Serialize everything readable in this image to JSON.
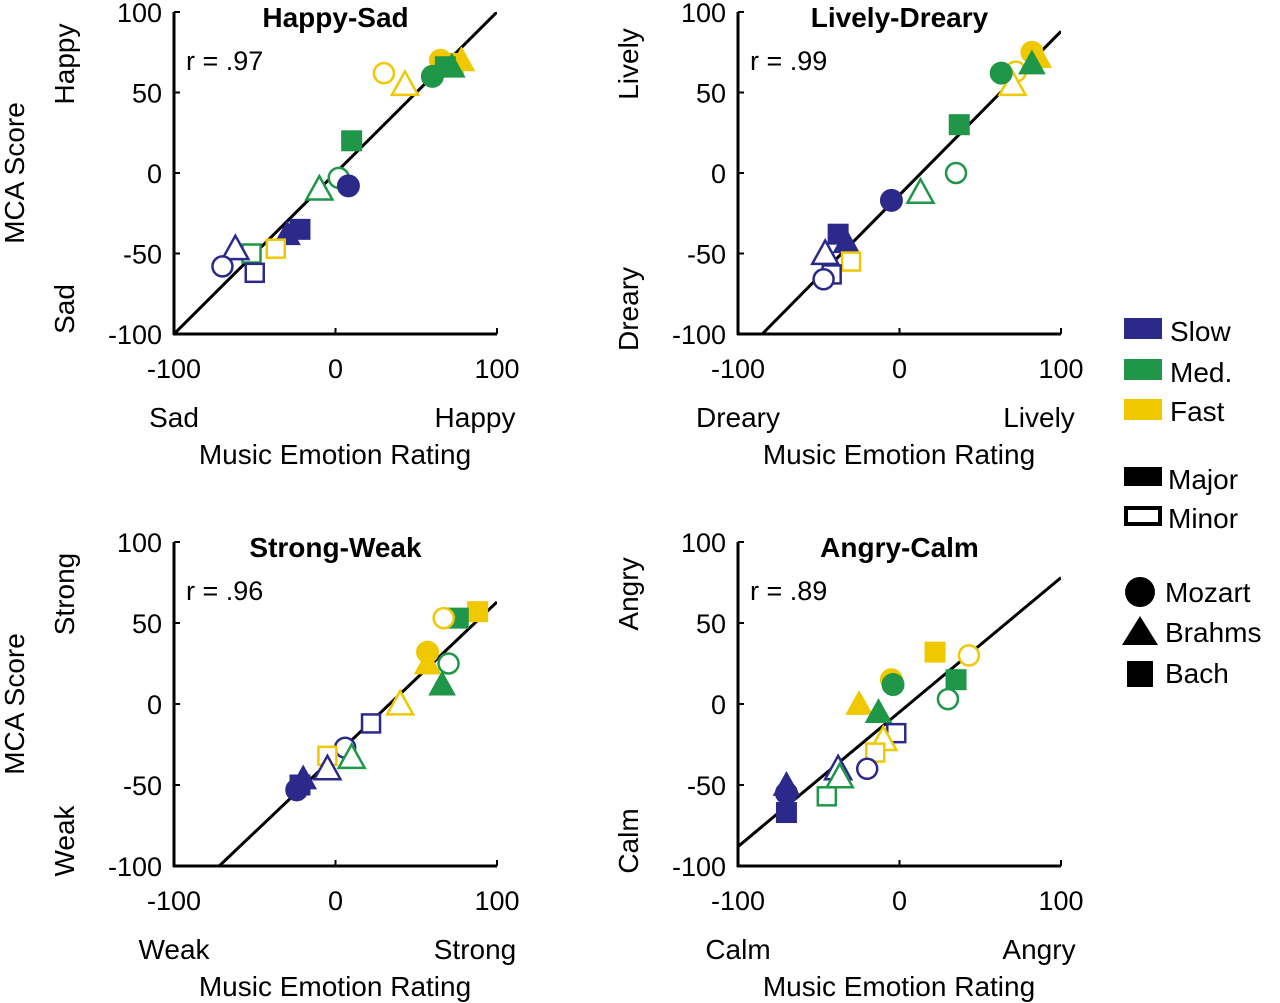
{
  "legend": {
    "speeds": [
      {
        "label": "Slow",
        "color": "#2b2a8a"
      },
      {
        "label": "Med.",
        "color": "#1f9648"
      },
      {
        "label": "Fast",
        "color": "#f0c800"
      }
    ],
    "modes": [
      {
        "label": "Major",
        "style": "filled"
      },
      {
        "label": "Minor",
        "style": "open"
      }
    ],
    "composers": [
      {
        "label": "Mozart",
        "shape": "circle"
      },
      {
        "label": "Brahms",
        "shape": "triangle"
      },
      {
        "label": "Bach",
        "shape": "square"
      }
    ]
  },
  "chart_data": [
    {
      "type": "scatter",
      "title": "Happy-Sad",
      "r_label": "r = .97",
      "xlabel": "Music Emotion Rating",
      "ylabel": "MCA Score",
      "x_low_label": "Sad",
      "x_high_label": "Happy",
      "y_low_label": "Sad",
      "y_high_label": "Happy",
      "xlim": [
        -100,
        100
      ],
      "ylim": [
        -100,
        100
      ],
      "xticks": [
        "-100",
        "0",
        "100"
      ],
      "yticks": [
        "100",
        "50",
        "0",
        "-50",
        "-100"
      ],
      "show_ylabel": true,
      "fit_line": [
        [
          -100,
          -100
        ],
        [
          100,
          100
        ]
      ],
      "points": [
        {
          "x": 65,
          "y": 70,
          "speed": "Fast",
          "mode": "Major",
          "composer": "Mozart"
        },
        {
          "x": 73,
          "y": 68,
          "speed": "Fast",
          "mode": "Major",
          "composer": "Bach"
        },
        {
          "x": 78,
          "y": 70,
          "speed": "Fast",
          "mode": "Major",
          "composer": "Brahms"
        },
        {
          "x": 60,
          "y": 60,
          "speed": "Med.",
          "mode": "Major",
          "composer": "Mozart"
        },
        {
          "x": 72,
          "y": 66,
          "speed": "Med.",
          "mode": "Major",
          "composer": "Brahms"
        },
        {
          "x": 68,
          "y": 66,
          "speed": "Med.",
          "mode": "Major",
          "composer": "Bach"
        },
        {
          "x": 30,
          "y": 62,
          "speed": "Fast",
          "mode": "Minor",
          "composer": "Mozart"
        },
        {
          "x": 43,
          "y": 55,
          "speed": "Fast",
          "mode": "Minor",
          "composer": "Brahms"
        },
        {
          "x": 10,
          "y": 20,
          "speed": "Med.",
          "mode": "Major",
          "composer": "Bach"
        },
        {
          "x": 2,
          "y": -3,
          "speed": "Med.",
          "mode": "Minor",
          "composer": "Mozart"
        },
        {
          "x": -10,
          "y": -10,
          "speed": "Med.",
          "mode": "Minor",
          "composer": "Brahms"
        },
        {
          "x": 8,
          "y": -8,
          "speed": "Slow",
          "mode": "Major",
          "composer": "Mozart"
        },
        {
          "x": -22,
          "y": -35,
          "speed": "Slow",
          "mode": "Major",
          "composer": "Bach"
        },
        {
          "x": -30,
          "y": -38,
          "speed": "Slow",
          "mode": "Major",
          "composer": "Brahms"
        },
        {
          "x": -37,
          "y": -47,
          "speed": "Fast",
          "mode": "Minor",
          "composer": "Bach"
        },
        {
          "x": -52,
          "y": -50,
          "speed": "Med.",
          "mode": "Minor",
          "composer": "Bach"
        },
        {
          "x": -62,
          "y": -47,
          "speed": "Slow",
          "mode": "Minor",
          "composer": "Brahms"
        },
        {
          "x": -70,
          "y": -58,
          "speed": "Slow",
          "mode": "Minor",
          "composer": "Mozart"
        },
        {
          "x": -50,
          "y": -62,
          "speed": "Slow",
          "mode": "Minor",
          "composer": "Bach"
        }
      ]
    },
    {
      "type": "scatter",
      "title": "Lively-Dreary",
      "r_label": "r = .99",
      "xlabel": "Music Emotion Rating",
      "ylabel": "",
      "x_low_label": "Dreary",
      "x_high_label": "Lively",
      "y_low_label": "Dreary",
      "y_high_label": "Lively",
      "xlim": [
        -100,
        100
      ],
      "ylim": [
        -100,
        100
      ],
      "xticks": [
        "-100",
        "0",
        "100"
      ],
      "yticks": [
        "100",
        "50",
        "0",
        "-50",
        "-100"
      ],
      "show_ylabel": false,
      "fit_line": [
        [
          -85,
          -100
        ],
        [
          100,
          88
        ]
      ],
      "points": [
        {
          "x": 82,
          "y": 75,
          "speed": "Fast",
          "mode": "Major",
          "composer": "Mozart"
        },
        {
          "x": 86,
          "y": 72,
          "speed": "Fast",
          "mode": "Major",
          "composer": "Brahms"
        },
        {
          "x": 72,
          "y": 63,
          "speed": "Fast",
          "mode": "Minor",
          "composer": "Mozart"
        },
        {
          "x": 70,
          "y": 55,
          "speed": "Fast",
          "mode": "Minor",
          "composer": "Brahms"
        },
        {
          "x": 63,
          "y": 62,
          "speed": "Med.",
          "mode": "Major",
          "composer": "Mozart"
        },
        {
          "x": 82,
          "y": 68,
          "speed": "Med.",
          "mode": "Major",
          "composer": "Brahms"
        },
        {
          "x": 37,
          "y": 30,
          "speed": "Med.",
          "mode": "Major",
          "composer": "Bach"
        },
        {
          "x": 35,
          "y": 0,
          "speed": "Med.",
          "mode": "Minor",
          "composer": "Mozart"
        },
        {
          "x": 13,
          "y": -12,
          "speed": "Med.",
          "mode": "Minor",
          "composer": "Brahms"
        },
        {
          "x": -5,
          "y": -17,
          "speed": "Slow",
          "mode": "Major",
          "composer": "Mozart"
        },
        {
          "x": -38,
          "y": -38,
          "speed": "Slow",
          "mode": "Major",
          "composer": "Bach"
        },
        {
          "x": -33,
          "y": -43,
          "speed": "Slow",
          "mode": "Major",
          "composer": "Brahms"
        },
        {
          "x": -30,
          "y": -55,
          "speed": "Fast",
          "mode": "Minor",
          "composer": "Bach"
        },
        {
          "x": -46,
          "y": -50,
          "speed": "Slow",
          "mode": "Minor",
          "composer": "Brahms"
        },
        {
          "x": -42,
          "y": -63,
          "speed": "Slow",
          "mode": "Minor",
          "composer": "Bach"
        },
        {
          "x": -47,
          "y": -66,
          "speed": "Slow",
          "mode": "Minor",
          "composer": "Mozart"
        }
      ]
    },
    {
      "type": "scatter",
      "title": "Strong-Weak",
      "r_label": "r = .96",
      "xlabel": "Music Emotion Rating",
      "ylabel": "MCA Score",
      "x_low_label": "Weak",
      "x_high_label": "Strong",
      "y_low_label": "Weak",
      "y_high_label": "Strong",
      "xlim": [
        -100,
        100
      ],
      "ylim": [
        -100,
        100
      ],
      "xticks": [
        "-100",
        "0",
        "100"
      ],
      "yticks": [
        "100",
        "50",
        "0",
        "-50",
        "-100"
      ],
      "show_ylabel": true,
      "fit_line": [
        [
          -72,
          -100
        ],
        [
          100,
          63
        ]
      ],
      "points": [
        {
          "x": 88,
          "y": 57,
          "speed": "Fast",
          "mode": "Major",
          "composer": "Bach"
        },
        {
          "x": 76,
          "y": 53,
          "speed": "Med.",
          "mode": "Major",
          "composer": "Bach"
        },
        {
          "x": 67,
          "y": 53,
          "speed": "Fast",
          "mode": "Minor",
          "composer": "Mozart"
        },
        {
          "x": 57,
          "y": 32,
          "speed": "Fast",
          "mode": "Major",
          "composer": "Mozart"
        },
        {
          "x": 57,
          "y": 25,
          "speed": "Fast",
          "mode": "Major",
          "composer": "Brahms"
        },
        {
          "x": 70,
          "y": 25,
          "speed": "Med.",
          "mode": "Minor",
          "composer": "Mozart"
        },
        {
          "x": 66,
          "y": 12,
          "speed": "Med.",
          "mode": "Major",
          "composer": "Brahms"
        },
        {
          "x": 40,
          "y": 0,
          "speed": "Fast",
          "mode": "Minor",
          "composer": "Brahms"
        },
        {
          "x": 22,
          "y": -12,
          "speed": "Slow",
          "mode": "Minor",
          "composer": "Bach"
        },
        {
          "x": 6,
          "y": -27,
          "speed": "Slow",
          "mode": "Minor",
          "composer": "Mozart"
        },
        {
          "x": -5,
          "y": -32,
          "speed": "Fast",
          "mode": "Minor",
          "composer": "Bach"
        },
        {
          "x": 10,
          "y": -33,
          "speed": "Med.",
          "mode": "Minor",
          "composer": "Brahms"
        },
        {
          "x": -5,
          "y": -40,
          "speed": "Slow",
          "mode": "Minor",
          "composer": "Brahms"
        },
        {
          "x": -20,
          "y": -46,
          "speed": "Slow",
          "mode": "Major",
          "composer": "Brahms"
        },
        {
          "x": -22,
          "y": -50,
          "speed": "Slow",
          "mode": "Major",
          "composer": "Bach"
        },
        {
          "x": -24,
          "y": -53,
          "speed": "Slow",
          "mode": "Major",
          "composer": "Mozart"
        }
      ]
    },
    {
      "type": "scatter",
      "title": "Angry-Calm",
      "r_label": "r = .89",
      "xlabel": "Music Emotion Rating",
      "ylabel": "",
      "x_low_label": "Calm",
      "x_high_label": "Angry",
      "y_low_label": "Calm",
      "y_high_label": "Angry",
      "xlim": [
        -100,
        100
      ],
      "ylim": [
        -100,
        100
      ],
      "xticks": [
        "-100",
        "0",
        "100"
      ],
      "yticks": [
        "100",
        "50",
        "0",
        "-50",
        "-100"
      ],
      "show_ylabel": false,
      "fit_line": [
        [
          -100,
          -88
        ],
        [
          100,
          78
        ]
      ],
      "points": [
        {
          "x": 22,
          "y": 32,
          "speed": "Fast",
          "mode": "Major",
          "composer": "Bach"
        },
        {
          "x": 43,
          "y": 30,
          "speed": "Fast",
          "mode": "Minor",
          "composer": "Mozart"
        },
        {
          "x": 35,
          "y": 15,
          "speed": "Med.",
          "mode": "Major",
          "composer": "Bach"
        },
        {
          "x": 30,
          "y": 3,
          "speed": "Med.",
          "mode": "Minor",
          "composer": "Mozart"
        },
        {
          "x": -5,
          "y": 15,
          "speed": "Fast",
          "mode": "Major",
          "composer": "Mozart"
        },
        {
          "x": -4,
          "y": 12,
          "speed": "Med.",
          "mode": "Major",
          "composer": "Mozart"
        },
        {
          "x": -25,
          "y": 0,
          "speed": "Fast",
          "mode": "Major",
          "composer": "Brahms"
        },
        {
          "x": -13,
          "y": -5,
          "speed": "Med.",
          "mode": "Major",
          "composer": "Brahms"
        },
        {
          "x": -2,
          "y": -18,
          "speed": "Slow",
          "mode": "Minor",
          "composer": "Bach"
        },
        {
          "x": -10,
          "y": -22,
          "speed": "Fast",
          "mode": "Minor",
          "composer": "Brahms"
        },
        {
          "x": -15,
          "y": -30,
          "speed": "Fast",
          "mode": "Minor",
          "composer": "Bach"
        },
        {
          "x": -20,
          "y": -40,
          "speed": "Slow",
          "mode": "Minor",
          "composer": "Mozart"
        },
        {
          "x": -38,
          "y": -40,
          "speed": "Slow",
          "mode": "Minor",
          "composer": "Brahms"
        },
        {
          "x": -37,
          "y": -45,
          "speed": "Med.",
          "mode": "Minor",
          "composer": "Brahms"
        },
        {
          "x": -45,
          "y": -57,
          "speed": "Med.",
          "mode": "Minor",
          "composer": "Bach"
        },
        {
          "x": -70,
          "y": -50,
          "speed": "Slow",
          "mode": "Major",
          "composer": "Brahms"
        },
        {
          "x": -70,
          "y": -55,
          "speed": "Slow",
          "mode": "Major",
          "composer": "Mozart"
        },
        {
          "x": -70,
          "y": -67,
          "speed": "Slow",
          "mode": "Major",
          "composer": "Bach"
        }
      ]
    }
  ]
}
